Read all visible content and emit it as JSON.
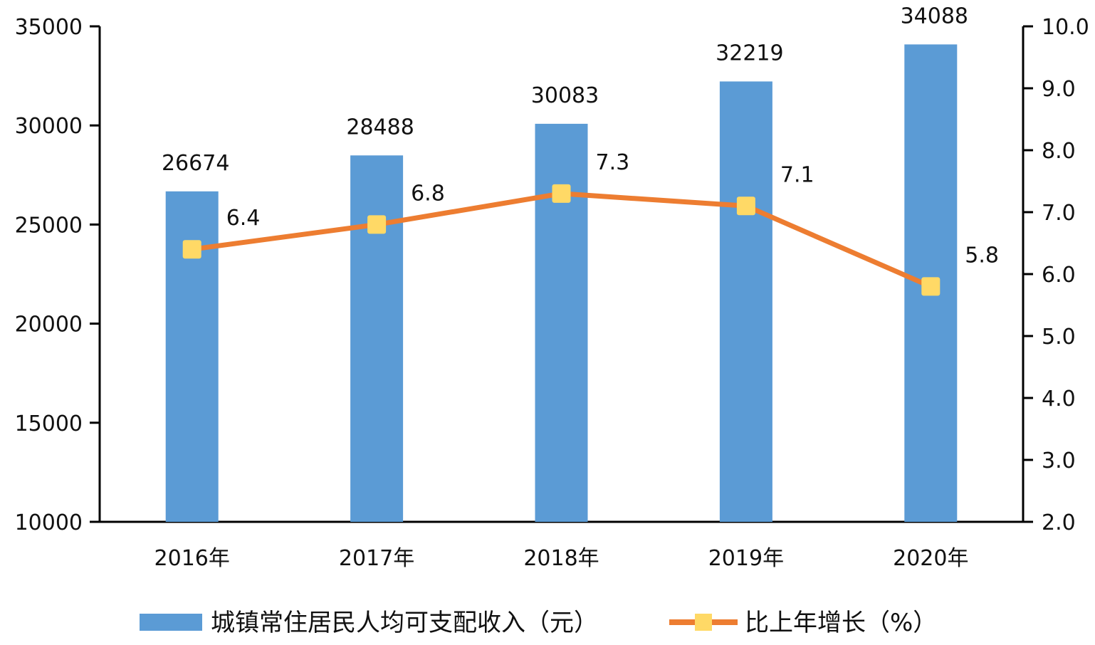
{
  "chart_data": {
    "type": "bar",
    "categories": [
      "2016年",
      "2017年",
      "2018年",
      "2019年",
      "2020年"
    ],
    "series": [
      {
        "name": "城镇常住居民人均可支配收入（元）",
        "type": "bar",
        "axis": "left",
        "values": [
          26674,
          28488,
          30083,
          32219,
          34088
        ],
        "color": "#5B9BD5"
      },
      {
        "name": "比上年增长（%）",
        "type": "line",
        "axis": "right",
        "values": [
          6.4,
          6.8,
          7.3,
          7.1,
          5.8
        ],
        "color": "#ED7D31",
        "marker_color": "#FFD966"
      }
    ],
    "left_axis": {
      "ylim": [
        10000,
        35000
      ],
      "ticks": [
        10000,
        15000,
        20000,
        25000,
        30000,
        35000
      ],
      "tick_labels": [
        "10000",
        "15000",
        "20000",
        "25000",
        "30000",
        "35000"
      ]
    },
    "right_axis": {
      "ylim": [
        2.0,
        10.0
      ],
      "ticks": [
        2.0,
        3.0,
        4.0,
        5.0,
        6.0,
        7.0,
        8.0,
        9.0,
        10.0
      ],
      "tick_labels": [
        "2.0",
        "3.0",
        "4.0",
        "5.0",
        "6.0",
        "7.0",
        "8.0",
        "9.0",
        "10.0"
      ]
    },
    "bar_data_labels": [
      "26674",
      "28488",
      "30083",
      "32219",
      "34088"
    ],
    "line_data_labels": [
      "6.4",
      "6.8",
      "7.3",
      "7.1",
      "5.8"
    ],
    "grid": false,
    "legend_position": "bottom"
  }
}
